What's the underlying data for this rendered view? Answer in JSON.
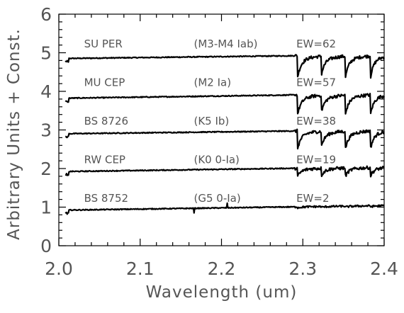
{
  "chart_data": {
    "type": "line",
    "xlabel": "Wavelength (um)",
    "ylabel": "Arbitrary Units + Const.",
    "xlim": [
      2.0,
      2.4
    ],
    "ylim": [
      0,
      6
    ],
    "x_ticks": [
      "2.0",
      "2.1",
      "2.2",
      "2.3",
      "2.4"
    ],
    "y_ticks": [
      "0",
      "1",
      "2",
      "3",
      "4",
      "5",
      "6"
    ],
    "grid": false,
    "series": [
      {
        "name": "SU PER",
        "spectral_type": "(M3-M4 Iab)",
        "ew": "EW=62",
        "offset": 4.85,
        "continuum_slope": 0.1,
        "co_depth": 0.46,
        "label_x": 2.031,
        "label_y": 5.25
      },
      {
        "name": "MU CEP",
        "spectral_type": "(M2 Ia)",
        "ew": "EW=57",
        "offset": 3.82,
        "continuum_slope": 0.12,
        "co_depth": 0.42,
        "label_x": 2.031,
        "label_y": 4.25
      },
      {
        "name": "BS 8726",
        "spectral_type": "(K5 Ib)",
        "ew": "EW=38",
        "offset": 2.9,
        "continuum_slope": 0.1,
        "co_depth": 0.38,
        "label_x": 2.031,
        "label_y": 3.25
      },
      {
        "name": "RW CEP",
        "spectral_type": "(K0 0-Ia)",
        "ew": "EW=19",
        "offset": 1.92,
        "continuum_slope": 0.12,
        "co_depth": 0.18,
        "label_x": 2.031,
        "label_y": 2.25
      },
      {
        "name": "BS 8752",
        "spectral_type": "(G5 0-Ia)",
        "ew": "EW=2",
        "offset": 0.92,
        "continuum_slope": 0.12,
        "co_depth": 0.02,
        "label_x": 2.031,
        "label_y": 1.25
      }
    ],
    "co_bandheads": [
      2.2935,
      2.3227,
      2.3525,
      2.383
    ]
  }
}
